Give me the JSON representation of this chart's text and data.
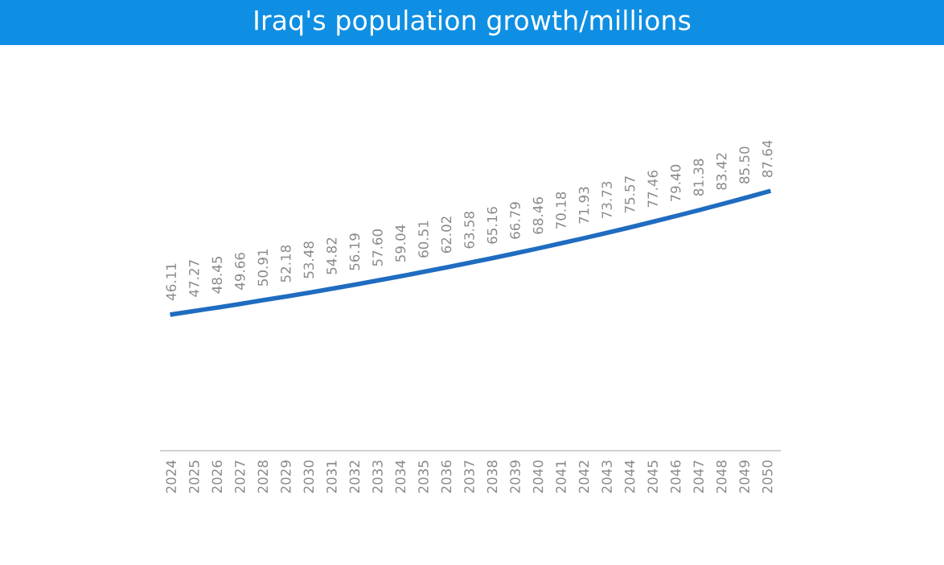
{
  "chart_data": {
    "type": "line",
    "title": "Iraq's population growth/millions",
    "categories": [
      "2024",
      "2025",
      "2026",
      "2027",
      "2028",
      "2029",
      "2030",
      "2031",
      "2032",
      "2033",
      "2034",
      "2035",
      "2036",
      "2037",
      "2038",
      "2039",
      "2040",
      "2041",
      "2042",
      "2043",
      "2044",
      "2045",
      "2046",
      "2047",
      "2048",
      "2049",
      "2050"
    ],
    "series": [
      {
        "color": "#1f6cc0",
        "values": [
          46.11,
          47.27,
          48.45,
          49.66,
          50.91,
          52.18,
          53.48,
          54.82,
          56.19,
          57.6,
          59.04,
          60.51,
          62.02,
          63.58,
          65.16,
          66.79,
          68.46,
          70.18,
          71.93,
          73.73,
          75.57,
          77.46,
          79.4,
          81.38,
          83.42,
          85.5,
          87.64
        ],
        "value_labels": [
          "46.11",
          "47.27",
          "48.45",
          "49.66",
          "50.91",
          "52.18",
          "53.48",
          "54.82",
          "56.19",
          "57.60",
          "59.04",
          "60.51",
          "62.02",
          "63.58",
          "65.16",
          "66.79",
          "68.46",
          "70.18",
          "71.93",
          "73.73",
          "75.57",
          "77.46",
          "79.40",
          "81.38",
          "83.42",
          "85.50",
          "87.64"
        ]
      }
    ],
    "grid": false,
    "legend": false,
    "marker": "none",
    "line_style": "solid",
    "tick_labels": "x"
  }
}
